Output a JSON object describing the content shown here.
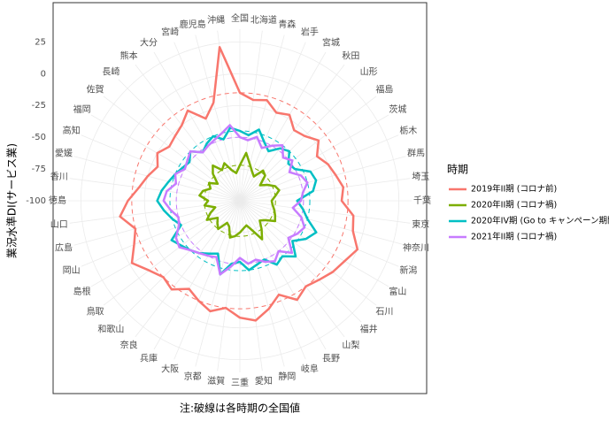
{
  "chart_data": {
    "type": "radar",
    "y_label": "業況水準DI(サービス業)",
    "caption": "注:破線は各時期の全国値",
    "legend_title": "時期",
    "categories": [
      "全国",
      "北海道",
      "青森",
      "岩手",
      "宮城",
      "秋田",
      "山形",
      "福島",
      "茨城",
      "栃木",
      "群馬",
      "埼玉",
      "千葉",
      "東京",
      "神奈川",
      "新潟",
      "富山",
      "石川",
      "福井",
      "山梨",
      "長野",
      "岐阜",
      "静岡",
      "愛知",
      "三重",
      "滋賀",
      "京都",
      "大阪",
      "兵庫",
      "奈良",
      "和歌山",
      "鳥取",
      "島根",
      "岡山",
      "広島",
      "山口",
      "徳島",
      "香川",
      "愛媛",
      "高知",
      "福岡",
      "佐賀",
      "長崎",
      "熊本",
      "大分",
      "宮崎",
      "鹿児島",
      "沖縄"
    ],
    "series": [
      {
        "name": "2019年II期 (コロナ前)",
        "color": "#F8766D",
        "values": [
          -15,
          -20,
          -18,
          -25,
          -22,
          -30,
          -28,
          -22,
          -30,
          -25,
          -22,
          -18,
          -20,
          -10,
          -8,
          0,
          -5,
          -8,
          -12,
          -15,
          -10,
          -20,
          -12,
          -5,
          -8,
          -15,
          -10,
          -15,
          -20,
          -12,
          -15,
          -10,
          -2,
          -10,
          -15,
          -5,
          -12,
          -20,
          -25,
          -30,
          -25,
          -30,
          -28,
          -25,
          -18,
          -30,
          -20,
          22
        ]
      },
      {
        "name": "2020年II期 (コロナ禍)",
        "color": "#7CAE00",
        "values": [
          -72,
          -62,
          -70,
          -75,
          -78,
          -70,
          -72,
          -80,
          -75,
          -70,
          -68,
          -72,
          -75,
          -74,
          -72,
          -70,
          -68,
          -75,
          -78,
          -72,
          -65,
          -75,
          -80,
          -78,
          -75,
          -72,
          -70,
          -78,
          -80,
          -72,
          -75,
          -78,
          -70,
          -75,
          -80,
          -72,
          -75,
          -68,
          -70,
          -75,
          -72,
          -78,
          -70,
          -65,
          -72,
          -68,
          -75,
          -78
        ]
      },
      {
        "name": "2020年IV期 (Go to キャンペーン期間)",
        "color": "#00BFC4",
        "values": [
          -45,
          -48,
          -42,
          -50,
          -55,
          -48,
          -45,
          -52,
          -50,
          -40,
          -38,
          -42,
          -55,
          -50,
          -45,
          -35,
          -40,
          -48,
          -38,
          -45,
          -42,
          -50,
          -48,
          -45,
          -52,
          -50,
          -40,
          -55,
          -52,
          -48,
          -45,
          -42,
          -38,
          -50,
          -45,
          -40,
          -35,
          -38,
          -42,
          -45,
          -48,
          -50,
          -45,
          -52,
          -48,
          -45,
          -50,
          -42
        ]
      },
      {
        "name": "2021年II期 (コロナ禍)",
        "color": "#C77CFF",
        "values": [
          -50,
          -52,
          -48,
          -55,
          -50,
          -45,
          -52,
          -48,
          -55,
          -48,
          -45,
          -50,
          -52,
          -58,
          -50,
          -45,
          -48,
          -52,
          -42,
          -50,
          -45,
          -48,
          -52,
          -50,
          -55,
          -48,
          -40,
          -52,
          -50,
          -48,
          -45,
          -40,
          -42,
          -48,
          -50,
          -45,
          -40,
          -42,
          -48,
          -45,
          -50,
          -48,
          -45,
          -52,
          -50,
          -48,
          -45,
          -40
        ]
      }
    ],
    "ylim": [
      -100,
      35
    ],
    "yticks": [
      -100,
      -75,
      -50,
      -25,
      0,
      25
    ],
    "grid": true
  }
}
